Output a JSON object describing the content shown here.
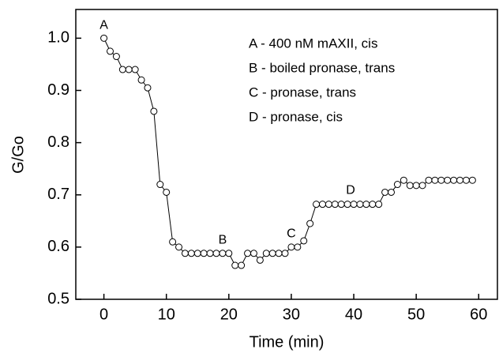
{
  "chart_data": {
    "type": "line",
    "x_label": "Time (min)",
    "y_label": "G/Go",
    "x": [
      0,
      1,
      2,
      3,
      4,
      5,
      6,
      7,
      8,
      9,
      10,
      11,
      12,
      13,
      14,
      15,
      16,
      17,
      18,
      19,
      20,
      21,
      22,
      23,
      24,
      25,
      26,
      27,
      28,
      29,
      30,
      31,
      32,
      33,
      34,
      35,
      36,
      37,
      38,
      39,
      40,
      41,
      42,
      43,
      44,
      45,
      46,
      47,
      48,
      49,
      50,
      51,
      52,
      53,
      54,
      55,
      56,
      57,
      58,
      59
    ],
    "series": [
      {
        "color": "#000000",
        "values": [
          1.0,
          0.975,
          0.965,
          0.94,
          0.94,
          0.94,
          0.92,
          0.905,
          0.86,
          0.72,
          0.705,
          0.61,
          0.6,
          0.588,
          0.588,
          0.588,
          0.588,
          0.588,
          0.588,
          0.588,
          0.588,
          0.565,
          0.565,
          0.588,
          0.588,
          0.575,
          0.588,
          0.588,
          0.588,
          0.588,
          0.6,
          0.6,
          0.612,
          0.645,
          0.682,
          0.682,
          0.682,
          0.682,
          0.682,
          0.682,
          0.682,
          0.682,
          0.682,
          0.682,
          0.682,
          0.705,
          0.705,
          0.72,
          0.728,
          0.718,
          0.718,
          0.718,
          0.728,
          0.728,
          0.728,
          0.728,
          0.728,
          0.728,
          0.728,
          0.728
        ]
      }
    ],
    "xlim": [
      -4.5,
      63
    ],
    "ylim": [
      0.5,
      1.055
    ],
    "xticks": [
      0,
      10,
      20,
      30,
      40,
      50,
      60
    ],
    "yticks": [
      0.5,
      0.6,
      0.7,
      0.8,
      0.9,
      {
        "value": 1,
        "label": "1.0"
      }
    ],
    "annotations": [
      {
        "text": "A",
        "x": 0,
        "y": 1.024
      },
      {
        "text": "B",
        "x": 19,
        "y": 0.613
      },
      {
        "text": "C",
        "x": 30,
        "y": 0.625
      },
      {
        "text": "D",
        "x": 39.5,
        "y": 0.708
      }
    ],
    "notes": [
      "A - 400 nM mAXII, cis",
      "B - boiled pronase, trans",
      "C - pronase, trans",
      "D - pronase, cis"
    ]
  }
}
